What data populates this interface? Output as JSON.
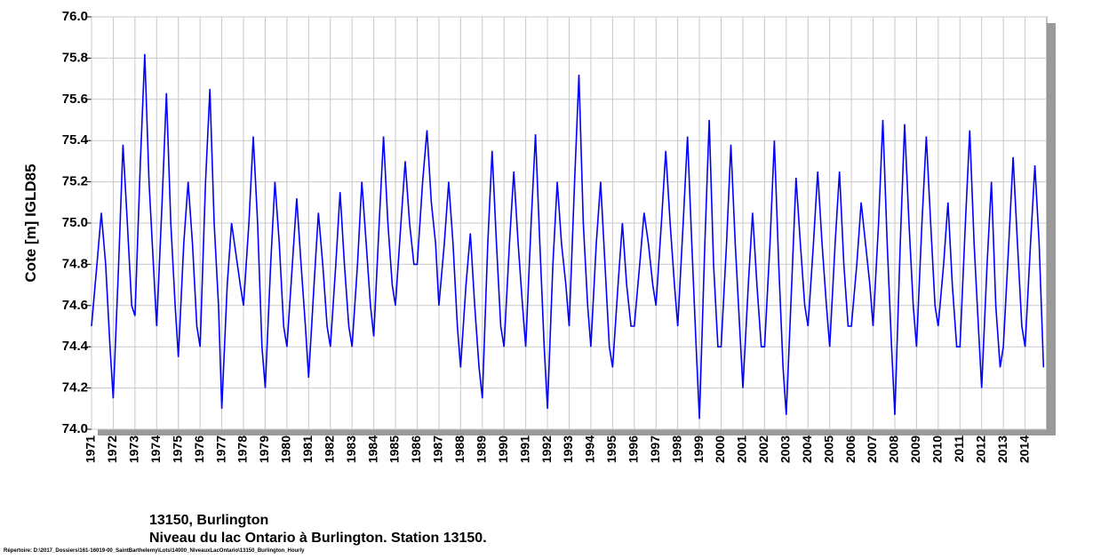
{
  "chart_data": {
    "type": "line",
    "y_label": "Cote [m] IGLD85",
    "subtitle_1": "13150, Burlington",
    "subtitle_2": "Niveau du lac Ontario à Burlington. Station 13150.",
    "footnote": "Répertoire: D:\\2017_Dossiers\\161-16019-00_SaintBarthelemy\\Lots\\14000_NiveauxLacOntario\\13150_Burlington_Hourly",
    "xlim": [
      1971,
      2015
    ],
    "ylim": [
      74.0,
      76.0
    ],
    "grid": true,
    "xticks": [
      1971,
      1972,
      1973,
      1974,
      1975,
      1976,
      1977,
      1978,
      1979,
      1980,
      1981,
      1982,
      1983,
      1984,
      1985,
      1986,
      1987,
      1988,
      1989,
      1990,
      1991,
      1992,
      1993,
      1994,
      1995,
      1996,
      1997,
      1998,
      1999,
      2000,
      2001,
      2002,
      2003,
      2004,
      2005,
      2006,
      2007,
      2008,
      2009,
      2010,
      2011,
      2012,
      2013,
      2014
    ],
    "yticks": [
      {
        "value": 74.0,
        "label": "74.0"
      },
      74.2,
      74.4,
      74.6,
      74.8,
      {
        "value": 75.0,
        "label": "75.0"
      },
      75.2,
      75.4,
      75.6,
      75.8,
      {
        "value": 76.0,
        "label": "76.0"
      }
    ],
    "x": [
      1971,
      1971.25,
      1971.45,
      1971.65,
      1971.85,
      1972,
      1972.25,
      1972.45,
      1972.65,
      1972.85,
      1973,
      1973.25,
      1973.45,
      1973.65,
      1973.85,
      1974,
      1974.25,
      1974.45,
      1974.65,
      1974.85,
      1975,
      1975.25,
      1975.45,
      1975.65,
      1975.85,
      1976,
      1976.25,
      1976.45,
      1976.65,
      1976.85,
      1977,
      1977.25,
      1977.45,
      1977.65,
      1977.85,
      1978,
      1978.25,
      1978.45,
      1978.65,
      1978.85,
      1979,
      1979.25,
      1979.45,
      1979.65,
      1979.85,
      1980,
      1980.25,
      1980.45,
      1980.65,
      1980.85,
      1981,
      1981.25,
      1981.45,
      1981.65,
      1981.85,
      1982,
      1982.25,
      1982.45,
      1982.65,
      1982.85,
      1983,
      1983.25,
      1983.45,
      1983.65,
      1983.85,
      1984,
      1984.25,
      1984.45,
      1984.65,
      1984.85,
      1985,
      1985.25,
      1985.45,
      1985.65,
      1985.85,
      1986,
      1986.25,
      1986.45,
      1986.65,
      1986.85,
      1987,
      1987.25,
      1987.45,
      1987.65,
      1987.85,
      1988,
      1988.25,
      1988.45,
      1988.65,
      1988.85,
      1989,
      1989.25,
      1989.45,
      1989.65,
      1989.85,
      1990,
      1990.25,
      1990.45,
      1990.65,
      1990.85,
      1991,
      1991.25,
      1991.45,
      1991.65,
      1991.85,
      1992,
      1992.25,
      1992.45,
      1992.65,
      1992.85,
      1993,
      1993.25,
      1993.45,
      1993.65,
      1993.85,
      1994,
      1994.25,
      1994.45,
      1994.65,
      1994.85,
      1995,
      1995.25,
      1995.45,
      1995.65,
      1995.85,
      1996,
      1996.25,
      1996.45,
      1996.65,
      1996.85,
      1997,
      1997.25,
      1997.45,
      1997.65,
      1997.85,
      1998,
      1998.25,
      1998.45,
      1998.65,
      1998.85,
      1999,
      1999.25,
      1999.45,
      1999.65,
      1999.85,
      2000,
      2000.25,
      2000.45,
      2000.65,
      2000.85,
      2001,
      2001.25,
      2001.45,
      2001.65,
      2001.85,
      2002,
      2002.25,
      2002.45,
      2002.65,
      2002.85,
      2003,
      2003.25,
      2003.45,
      2003.65,
      2003.85,
      2004,
      2004.25,
      2004.45,
      2004.65,
      2004.85,
      2005,
      2005.25,
      2005.45,
      2005.65,
      2005.85,
      2006,
      2006.25,
      2006.45,
      2006.65,
      2006.85,
      2007,
      2007.25,
      2007.45,
      2007.65,
      2007.85,
      2008,
      2008.25,
      2008.45,
      2008.65,
      2008.85,
      2009,
      2009.25,
      2009.45,
      2009.65,
      2009.85,
      2010,
      2010.25,
      2010.45,
      2010.65,
      2010.85,
      2011,
      2011.25,
      2011.45,
      2011.65,
      2011.85,
      2012,
      2012.25,
      2012.45,
      2012.65,
      2012.85,
      2013,
      2013.25,
      2013.45,
      2013.65,
      2013.85,
      2014,
      2014.25,
      2014.45,
      2014.65,
      2014.85
    ],
    "series": [
      {
        "color": "#0000ff",
        "values": [
          74.5,
          74.8,
          75.05,
          74.8,
          74.4,
          74.15,
          74.8,
          75.38,
          75.0,
          74.6,
          74.55,
          75.3,
          75.82,
          75.2,
          74.8,
          74.5,
          75.1,
          75.63,
          75.0,
          74.6,
          74.35,
          74.9,
          75.2,
          74.9,
          74.5,
          74.4,
          75.2,
          75.65,
          75.0,
          74.6,
          74.1,
          74.7,
          75.0,
          74.85,
          74.7,
          74.6,
          75.0,
          75.42,
          75.0,
          74.4,
          74.2,
          74.8,
          75.2,
          74.9,
          74.5,
          74.4,
          74.8,
          75.12,
          74.8,
          74.5,
          74.25,
          74.7,
          75.05,
          74.8,
          74.5,
          74.4,
          74.8,
          75.15,
          74.8,
          74.5,
          74.4,
          74.8,
          75.2,
          74.9,
          74.6,
          74.45,
          75.0,
          75.42,
          75.0,
          74.7,
          74.6,
          75.0,
          75.3,
          75.0,
          74.8,
          74.8,
          75.2,
          75.45,
          75.1,
          74.9,
          74.6,
          74.9,
          75.2,
          74.9,
          74.5,
          74.3,
          74.7,
          74.95,
          74.6,
          74.3,
          74.15,
          74.9,
          75.35,
          74.9,
          74.5,
          74.4,
          74.9,
          75.25,
          74.9,
          74.6,
          74.4,
          75.0,
          75.43,
          74.9,
          74.4,
          74.1,
          74.8,
          75.2,
          74.9,
          74.7,
          74.5,
          75.2,
          75.72,
          75.0,
          74.6,
          74.4,
          74.9,
          75.2,
          74.8,
          74.4,
          74.3,
          74.7,
          75.0,
          74.7,
          74.5,
          74.5,
          74.8,
          75.05,
          74.9,
          74.7,
          74.6,
          75.0,
          75.35,
          75.0,
          74.7,
          74.5,
          75.0,
          75.42,
          74.9,
          74.4,
          74.05,
          74.9,
          75.5,
          74.8,
          74.4,
          74.4,
          74.9,
          75.38,
          74.9,
          74.5,
          74.2,
          74.7,
          75.05,
          74.7,
          74.4,
          74.4,
          74.9,
          75.4,
          74.8,
          74.3,
          74.07,
          74.7,
          75.22,
          74.9,
          74.6,
          74.5,
          74.9,
          75.25,
          74.9,
          74.6,
          74.4,
          74.9,
          75.25,
          74.8,
          74.5,
          74.5,
          74.8,
          75.1,
          74.9,
          74.7,
          74.5,
          75.0,
          75.5,
          74.9,
          74.4,
          74.07,
          74.9,
          75.48,
          75.0,
          74.6,
          74.4,
          75.0,
          75.42,
          75.0,
          74.6,
          74.5,
          74.8,
          75.1,
          74.7,
          74.4,
          74.4,
          75.0,
          75.45,
          74.9,
          74.5,
          74.2,
          74.8,
          75.2,
          74.6,
          74.3,
          74.4,
          74.9,
          75.32,
          74.9,
          74.5,
          74.4,
          74.9,
          75.28,
          74.9,
          74.3
        ]
      }
    ]
  }
}
